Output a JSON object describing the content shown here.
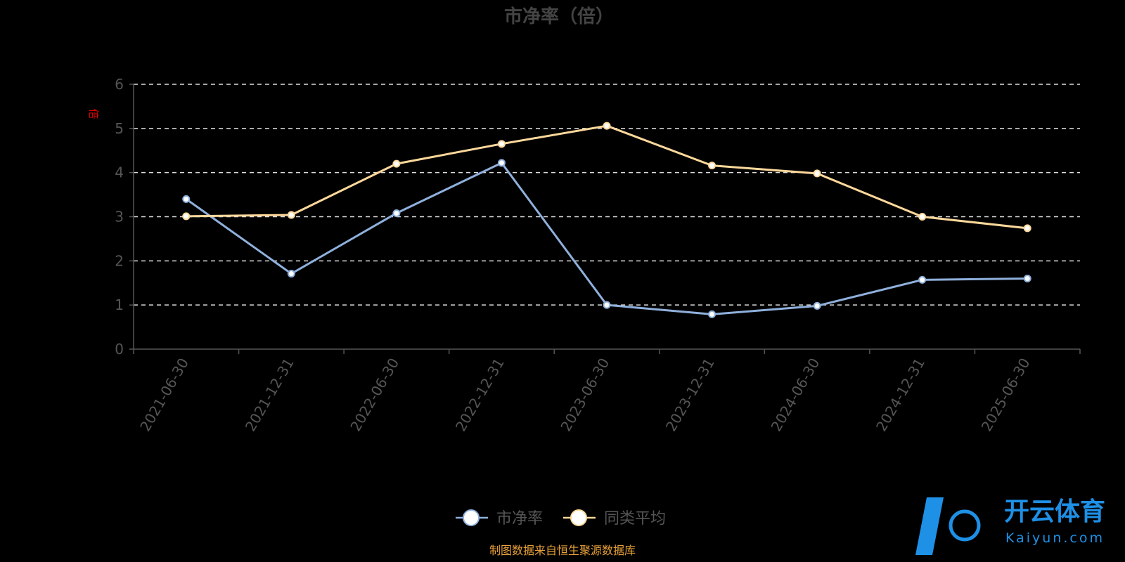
{
  "chart_data": {
    "type": "line",
    "title": "市净率（倍）",
    "ylabel": "倍",
    "ylim": [
      0,
      6
    ],
    "yticks": [
      0,
      1,
      2,
      3,
      4,
      5,
      6
    ],
    "grid": true,
    "legend_position": "bottom",
    "categories": [
      "2021-06-30",
      "2021-12-31",
      "2022-06-30",
      "2022-12-31",
      "2023-06-30",
      "2023-12-31",
      "2024-06-30",
      "2024-12-31",
      "2025-06-30"
    ],
    "series": [
      {
        "name": "市净率",
        "color": "#8fb0dc",
        "values": [
          3.4,
          1.71,
          3.08,
          4.22,
          1.0,
          0.79,
          0.98,
          1.57,
          1.6
        ]
      },
      {
        "name": "同类平均",
        "color": "#fdd89b",
        "values": [
          3.01,
          3.04,
          4.2,
          4.65,
          5.06,
          4.16,
          3.98,
          3.0,
          2.74
        ]
      }
    ]
  },
  "footer": {
    "source": "制图数据来自恒生聚源数据库"
  },
  "watermark": {
    "brand": "开云体育",
    "domain": "Kaiyun.com"
  }
}
